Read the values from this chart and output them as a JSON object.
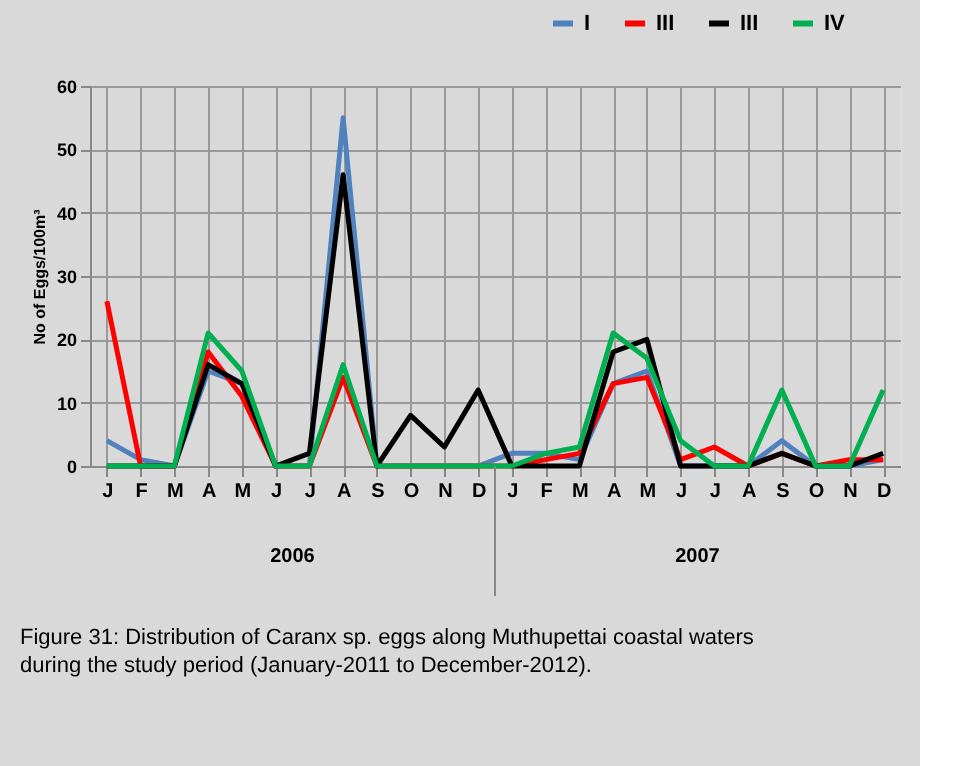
{
  "chart_data": {
    "type": "line",
    "ylabel": "No of Eggs/100m³",
    "categories": [
      "J",
      "F",
      "M",
      "A",
      "M",
      "J",
      "J",
      "A",
      "S",
      "O",
      "N",
      "D",
      "J",
      "F",
      "M",
      "A",
      "M",
      "J",
      "J",
      "A",
      "S",
      "O",
      "N",
      "D"
    ],
    "series": [
      {
        "name": "I",
        "color": "#4f81bd",
        "values": [
          4,
          1,
          0,
          15,
          13,
          0,
          0,
          55,
          0,
          0,
          0,
          0,
          2,
          2,
          1,
          13,
          15,
          0,
          0,
          0,
          4,
          0,
          0,
          1
        ]
      },
      {
        "name": "III",
        "color": "#ff0000",
        "values": [
          26,
          0,
          0,
          18,
          11,
          0,
          0,
          14,
          0,
          0,
          0,
          0,
          0,
          1,
          2,
          13,
          14,
          1,
          3,
          0,
          2,
          0,
          1,
          1
        ]
      },
      {
        "name": "III",
        "color": "#000000",
        "values": [
          0,
          0,
          0,
          16,
          13,
          0,
          2,
          46,
          0,
          8,
          3,
          12,
          0,
          0,
          0,
          18,
          20,
          0,
          0,
          0,
          2,
          0,
          0,
          2
        ]
      },
      {
        "name": "IV",
        "color": "#00b050",
        "values": [
          0,
          0,
          0,
          21,
          15,
          0,
          0,
          16,
          0,
          0,
          0,
          0,
          0,
          2,
          3,
          21,
          17,
          4,
          0,
          0,
          12,
          0,
          0,
          12
        ]
      }
    ],
    "ylim": [
      0,
      60
    ],
    "yticks": [
      0,
      10,
      20,
      30,
      40,
      50,
      60
    ],
    "grid": true,
    "legend": "top right",
    "marker": "none",
    "line_style": "solid",
    "annotations": [
      "2006",
      "2007",
      "Figure 31: Distribution of Caranx sp. eggs along Muthupettai coastal waters during the study period (January-2011 to December-2012)."
    ]
  }
}
